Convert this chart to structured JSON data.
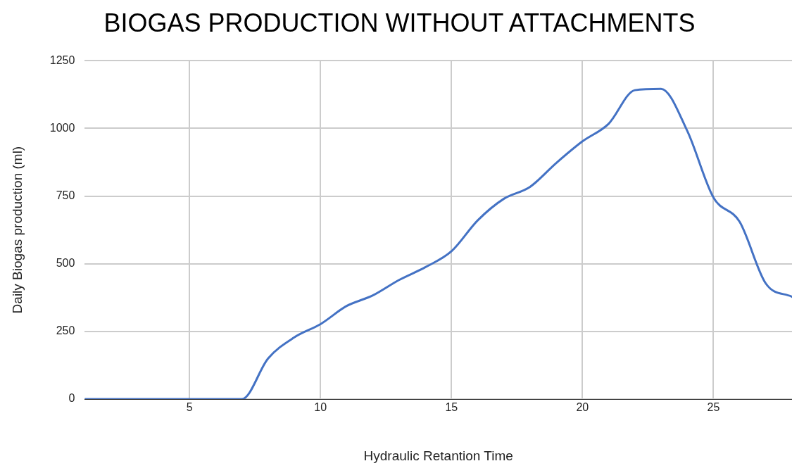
{
  "chart_data": {
    "type": "line",
    "title": "BIOGAS PRODUCTION WITHOUT ATTACHMENTS",
    "xlabel": "Hydraulic Retantion Time",
    "ylabel": "Daily Biogas production (ml)",
    "x": [
      1,
      2,
      3,
      4,
      5,
      6,
      7,
      8,
      9,
      10,
      11,
      12,
      13,
      14,
      15,
      16,
      17,
      18,
      19,
      20,
      21,
      22,
      23,
      24,
      25,
      26,
      27,
      28
    ],
    "series": [
      {
        "color": "#4472c4",
        "values": [
          0,
          0,
          0,
          0,
          0,
          0,
          0,
          150,
          228,
          277,
          344,
          383,
          440,
          487,
          546,
          660,
          740,
          784,
          872,
          952,
          1017,
          1141,
          1146,
          991,
          745,
          655,
          427,
          378
        ]
      }
    ],
    "xlim": [
      1,
      28
    ],
    "xticks": [
      5,
      10,
      15,
      20,
      25
    ],
    "ylim": [
      0,
      1250
    ],
    "yticks": [
      0,
      250,
      500,
      750,
      1000,
      1250
    ],
    "grid": true,
    "legend": false,
    "marker": "none",
    "line_style": "solid"
  }
}
